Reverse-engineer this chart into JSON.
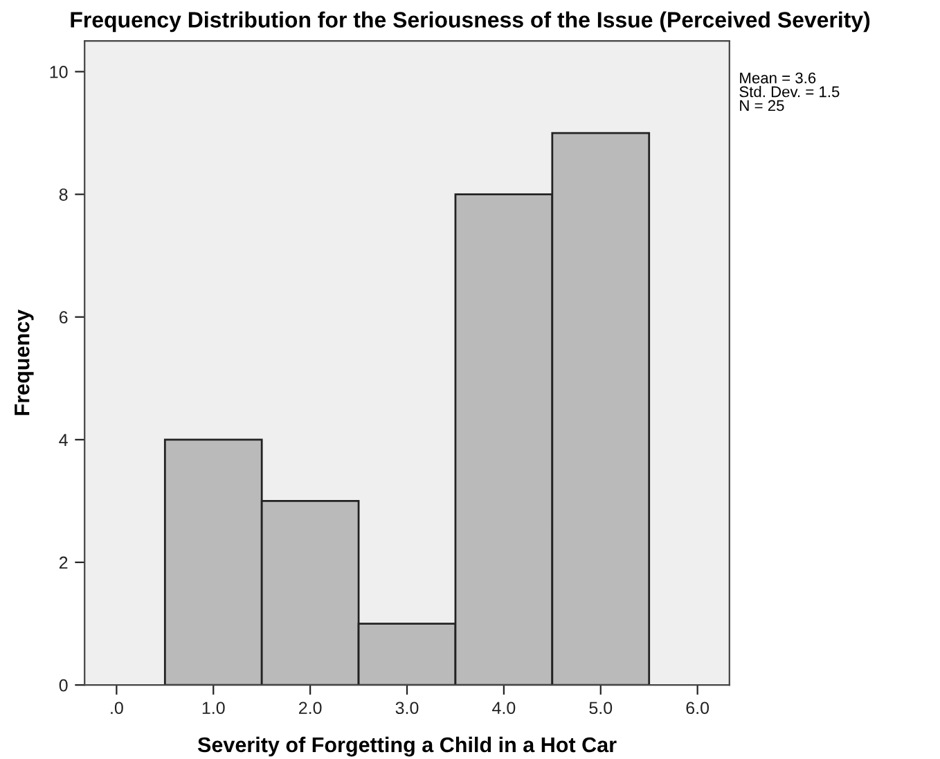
{
  "chart_data": {
    "type": "histogram",
    "title": "Frequency Distribution for the Seriousness of the Issue (Perceived Severity)",
    "xlabel": "Severity of Forgetting a Child in a Hot Car",
    "ylabel": "Frequency",
    "bins": [
      0.5,
      1.5,
      2.5,
      3.5,
      4.5,
      5.5
    ],
    "values": [
      4,
      3,
      1,
      8,
      9
    ],
    "color": "#bababa",
    "xlim": [
      -0.33,
      6.33
    ],
    "xticks": [
      {
        "value": 0,
        "label": ".0"
      },
      {
        "value": 1,
        "label": "1.0"
      },
      {
        "value": 2,
        "label": "2.0"
      },
      {
        "value": 3,
        "label": "3.0"
      },
      {
        "value": 4,
        "label": "4.0"
      },
      {
        "value": 5,
        "label": "5.0"
      },
      {
        "value": 6,
        "label": "6.0"
      }
    ],
    "ylim": [
      0,
      10.5
    ],
    "yticks": [
      0,
      2,
      4,
      6,
      8,
      10
    ],
    "grid": false,
    "annotations": [
      "Mean = 3.6\nStd. Dev. = 1.5\nN = 25"
    ]
  }
}
